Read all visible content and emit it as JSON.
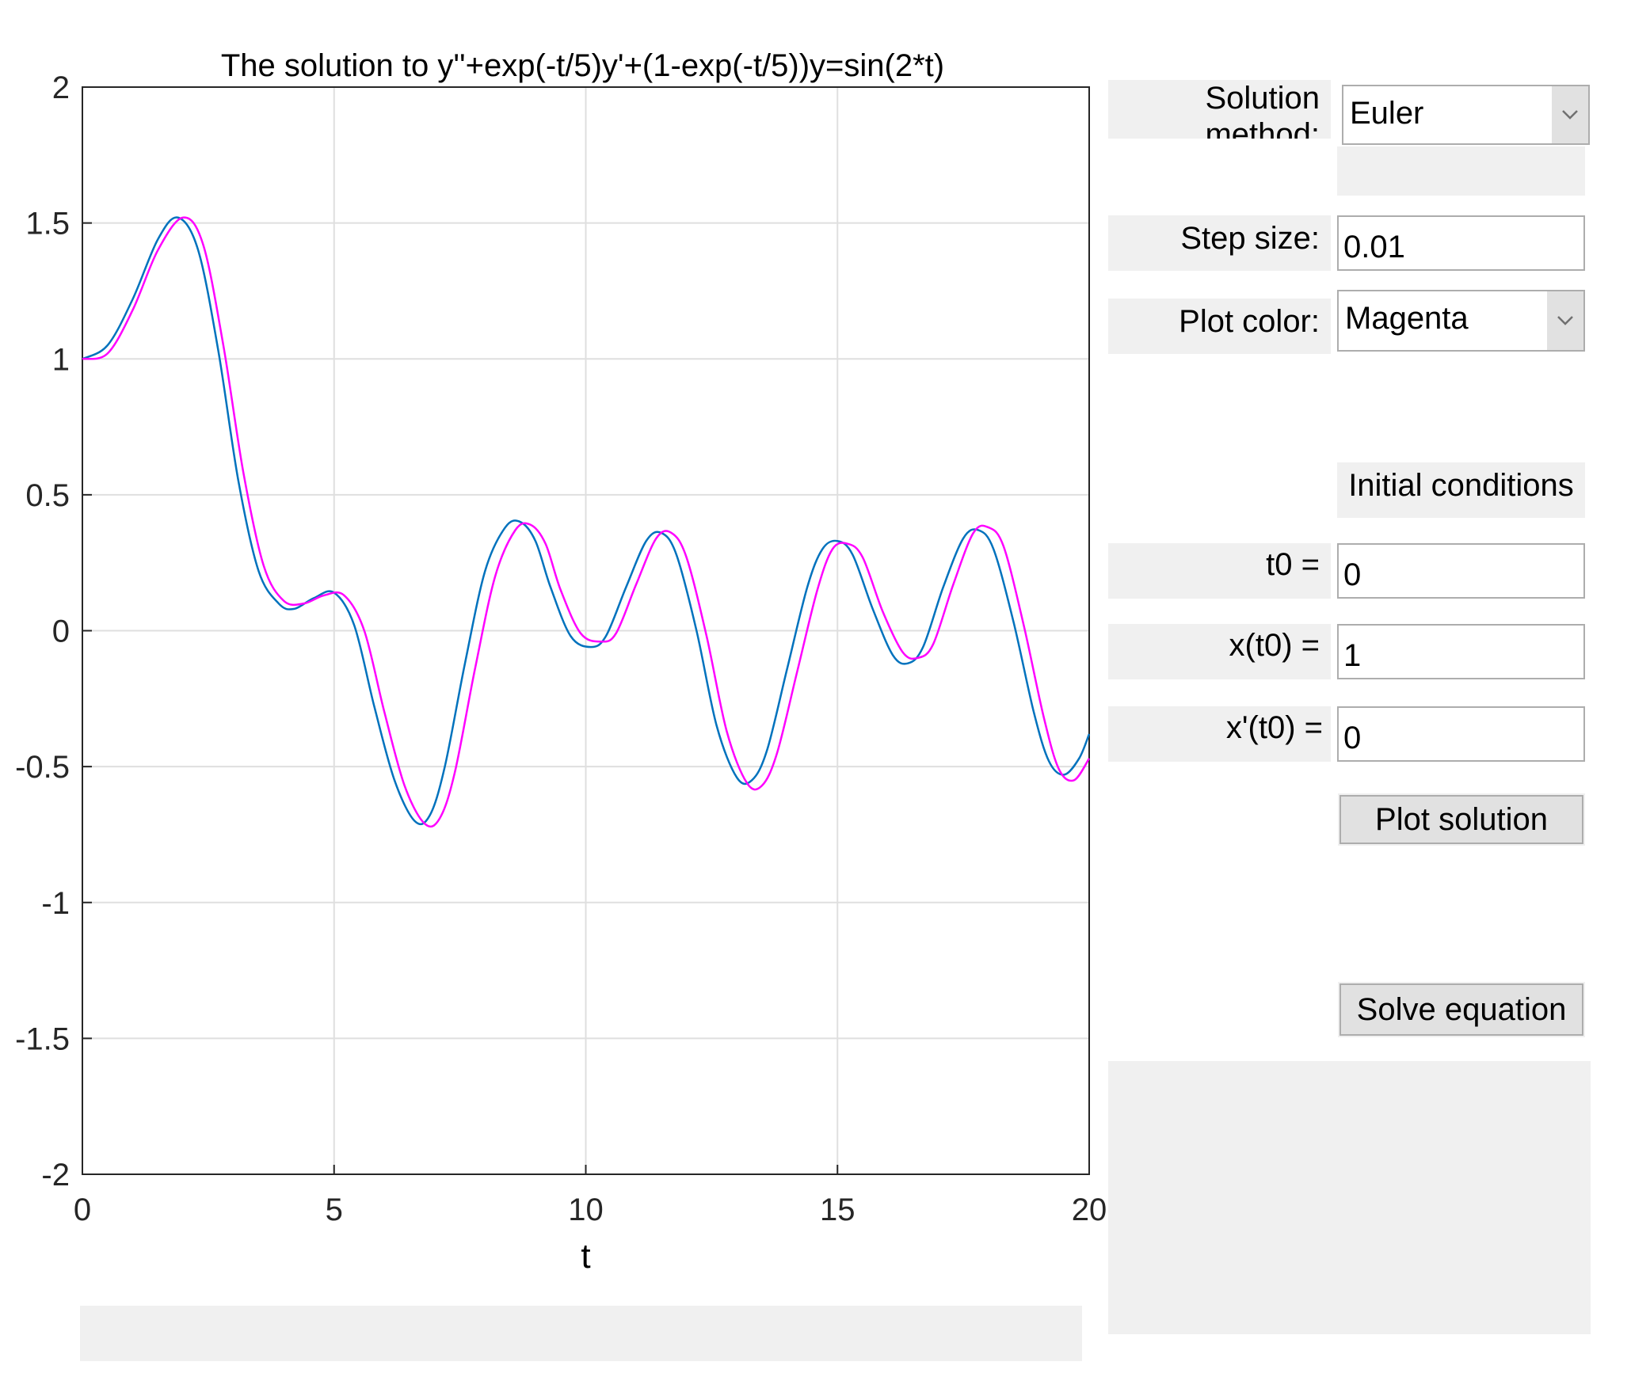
{
  "chart_data": {
    "type": "line",
    "title": "The solution to y''+exp(-t/5)y'+(1-exp(-t/5))y=sin(2*t)",
    "xlabel": "t",
    "ylabel": "",
    "xlim": [
      0,
      20
    ],
    "ylim": [
      -2,
      2
    ],
    "grid": true,
    "x_ticks": [
      "0",
      "5",
      "10",
      "15",
      "20"
    ],
    "y_ticks": [
      "2",
      "1.5",
      "1",
      "0.5",
      "0",
      "-0.5",
      "-1",
      "-1.5",
      "-2"
    ],
    "series": [
      {
        "color": "#0072BD",
        "x": [
          0,
          0.5,
          1.0,
          1.5,
          1.9,
          2.3,
          2.7,
          3.1,
          3.5,
          3.9,
          4.2,
          4.6,
          5.0,
          5.4,
          5.8,
          6.2,
          6.6,
          6.9,
          7.2,
          7.6,
          8.0,
          8.4,
          8.7,
          9.0,
          9.3,
          9.7,
          10.1,
          10.4,
          10.8,
          11.2,
          11.5,
          11.8,
          12.2,
          12.6,
          13.0,
          13.3,
          13.6,
          14.0,
          14.4,
          14.7,
          15.0,
          15.3,
          15.7,
          16.1,
          16.4,
          16.7,
          17.1,
          17.5,
          17.8,
          18.1,
          18.5,
          18.9,
          19.2,
          19.5,
          19.8,
          20.0
        ],
        "y": [
          1.0,
          1.05,
          1.22,
          1.44,
          1.52,
          1.4,
          1.03,
          0.55,
          0.22,
          0.1,
          0.08,
          0.12,
          0.14,
          0.02,
          -0.28,
          -0.55,
          -0.7,
          -0.68,
          -0.5,
          -0.12,
          0.22,
          0.38,
          0.4,
          0.33,
          0.16,
          -0.02,
          -0.06,
          -0.02,
          0.16,
          0.33,
          0.36,
          0.28,
          0.0,
          -0.35,
          -0.54,
          -0.55,
          -0.44,
          -0.14,
          0.16,
          0.3,
          0.33,
          0.28,
          0.08,
          -0.09,
          -0.12,
          -0.06,
          0.16,
          0.34,
          0.37,
          0.3,
          0.03,
          -0.3,
          -0.48,
          -0.53,
          -0.47,
          -0.38
        ]
      },
      {
        "color": "#FF00FF",
        "x": [
          0,
          0.5,
          1.0,
          1.5,
          2.0,
          2.4,
          2.8,
          3.2,
          3.6,
          4.0,
          4.4,
          4.8,
          5.2,
          5.6,
          6.0,
          6.4,
          6.8,
          7.1,
          7.4,
          7.8,
          8.2,
          8.6,
          8.9,
          9.2,
          9.5,
          9.9,
          10.3,
          10.6,
          11.0,
          11.4,
          11.7,
          12.0,
          12.4,
          12.8,
          13.2,
          13.5,
          13.8,
          14.2,
          14.6,
          14.9,
          15.2,
          15.5,
          15.9,
          16.3,
          16.6,
          16.9,
          17.3,
          17.7,
          18.0,
          18.3,
          18.7,
          19.1,
          19.4,
          19.7,
          20.0
        ],
        "y": [
          1.0,
          1.02,
          1.18,
          1.4,
          1.52,
          1.42,
          1.05,
          0.58,
          0.24,
          0.11,
          0.1,
          0.13,
          0.13,
          0.0,
          -0.3,
          -0.57,
          -0.71,
          -0.69,
          -0.52,
          -0.14,
          0.2,
          0.37,
          0.39,
          0.32,
          0.15,
          -0.01,
          -0.04,
          -0.01,
          0.17,
          0.34,
          0.36,
          0.27,
          -0.02,
          -0.37,
          -0.56,
          -0.57,
          -0.45,
          -0.15,
          0.15,
          0.3,
          0.32,
          0.27,
          0.07,
          -0.08,
          -0.1,
          -0.05,
          0.17,
          0.36,
          0.38,
          0.31,
          0.02,
          -0.32,
          -0.51,
          -0.55,
          -0.47
        ]
      }
    ]
  },
  "controls": {
    "method_label": "Solution method:",
    "method_value": "Euler",
    "step_label": "Step size:",
    "step_value": "0.01",
    "color_label": "Plot color:",
    "color_value": "Magenta",
    "ic_title": "Initial conditions",
    "t0_label": "t0 =",
    "t0_value": "0",
    "x0_label": "x(t0) =",
    "x0_value": "1",
    "dx0_label": "x'(t0) =",
    "dx0_value": "0",
    "plot_button": "Plot solution",
    "solve_button": "Solve equation"
  },
  "icons": {
    "dropdown_arrow": "chevron-down-icon"
  }
}
